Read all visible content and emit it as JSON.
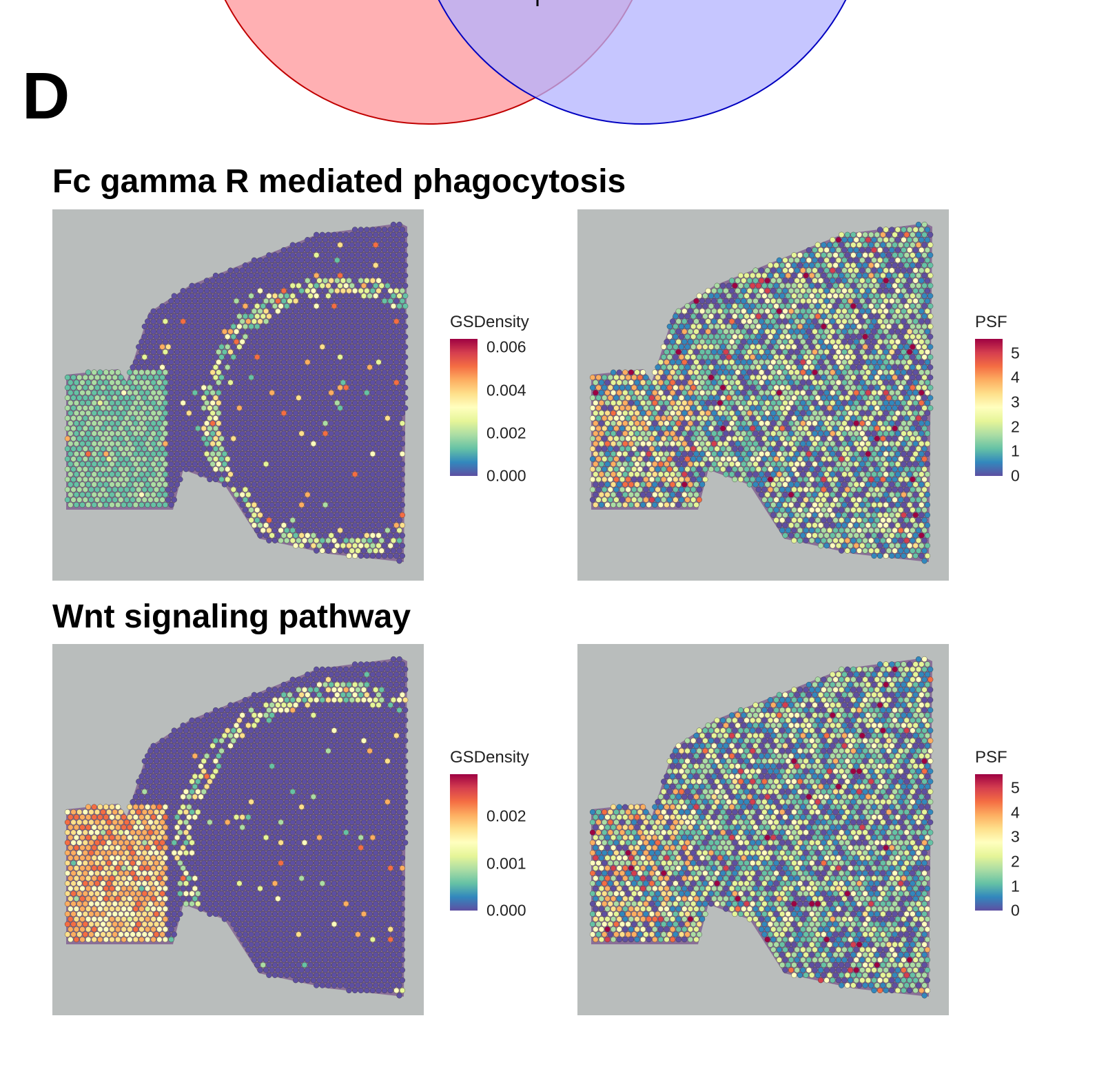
{
  "figure": {
    "panel_letter": "D",
    "venn_colors": {
      "left_fill": "#FFB0B3",
      "left_stroke": "#C00000",
      "right_fill": "#B3B3FF",
      "right_stroke": "#0000C0",
      "overlap": "#B07CC6"
    }
  },
  "sections": [
    {
      "title": "Fc gamma R mediated phagocytosis"
    },
    {
      "title": "Wnt signaling pathway"
    }
  ],
  "chart_data": [
    {
      "type": "heatmap",
      "section": "Fc gamma R mediated phagocytosis",
      "legend_title": "GSDensity",
      "ticks": [
        "0.000",
        "0.002",
        "0.004",
        "0.006"
      ],
      "tick_values": [
        0,
        0.002,
        0.004,
        0.006
      ],
      "range": [
        0,
        0.0062
      ],
      "colormap": "Spectral (reversed)"
    },
    {
      "type": "heatmap",
      "section": "Fc gamma R mediated phagocytosis",
      "legend_title": "PSF",
      "ticks": [
        "0",
        "1",
        "2",
        "3",
        "4",
        "5"
      ],
      "tick_values": [
        0,
        1,
        2,
        3,
        4,
        5
      ],
      "range": [
        0,
        5.5
      ],
      "colormap": "Spectral (reversed)"
    },
    {
      "type": "heatmap",
      "section": "Wnt signaling pathway",
      "legend_title": "GSDensity",
      "ticks": [
        "0.000",
        "0.001",
        "0.002"
      ],
      "tick_values": [
        0,
        0.001,
        0.002
      ],
      "range": [
        0,
        0.0029
      ],
      "colormap": "Spectral (reversed)"
    },
    {
      "type": "heatmap",
      "section": "Wnt signaling pathway",
      "legend_title": "PSF",
      "ticks": [
        "0",
        "1",
        "2",
        "3",
        "4",
        "5"
      ],
      "tick_values": [
        0,
        1,
        2,
        3,
        4,
        5
      ],
      "range": [
        0,
        5.5
      ],
      "colormap": "Spectral (reversed)"
    }
  ]
}
